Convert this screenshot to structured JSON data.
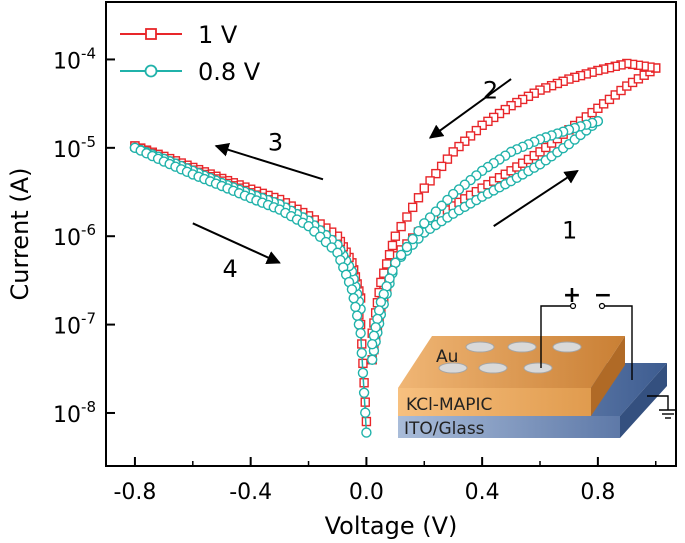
{
  "chart_data": {
    "type": "scatter",
    "xlabel": "Voltage (V)",
    "ylabel": "Current (A)",
    "xlim": [
      -0.9,
      1.07
    ],
    "ylim_log10": [
      -8.6,
      -3.35
    ],
    "yscale": "log",
    "xticks": [
      -0.8,
      -0.4,
      0.0,
      0.4,
      0.8
    ],
    "xtick_labels": [
      "-0.8",
      "-0.4",
      "0.0",
      "0.4",
      "0.8"
    ],
    "yticks": [
      1e-08,
      1e-07,
      1e-06,
      1e-05,
      0.0001
    ],
    "ytick_labels": [
      {
        "base": "10",
        "exp": "-8"
      },
      {
        "base": "10",
        "exp": "-7"
      },
      {
        "base": "10",
        "exp": "-6"
      },
      {
        "base": "10",
        "exp": "-5"
      },
      {
        "base": "10",
        "exp": "-4"
      }
    ],
    "legend_position": "top-left",
    "series": [
      {
        "name": "1 V",
        "color": "#e8262a",
        "marker": "square",
        "branches": [
          {
            "label": "forward_0_to_1",
            "x": [
              0.02,
              0.05,
              0.1,
              0.2,
              0.3,
              0.4,
              0.5,
              0.6,
              0.7,
              0.8,
              0.9,
              1.0
            ],
            "y": [
              4e-08,
              1.5e-07,
              6e-07,
              1.3e-06,
              2.2e-06,
              3.5e-06,
              5.5e-06,
              9e-06,
              1.6e-05,
              2.8e-05,
              5e-05,
              8e-05
            ]
          },
          {
            "label": "reverse_1_to_0",
            "x": [
              1.0,
              0.9,
              0.8,
              0.7,
              0.6,
              0.5,
              0.4,
              0.3,
              0.2,
              0.1,
              0.05,
              0.02
            ],
            "y": [
              8e-05,
              9e-05,
              7.5e-05,
              6e-05,
              4.5e-05,
              3e-05,
              1.8e-05,
              9e-06,
              3.5e-06,
              1e-06,
              3e-07,
              8e-08
            ]
          },
          {
            "label": "reverse_0_to_-0.8",
            "x": [
              -0.02,
              -0.05,
              -0.1,
              -0.2,
              -0.3,
              -0.4,
              -0.5,
              -0.6,
              -0.7,
              -0.8
            ],
            "y": [
              2e-07,
              5e-07,
              1e-06,
              1.7e-06,
              2.6e-06,
              3.4e-06,
              4.5e-06,
              6e-06,
              8e-06,
              1.05e-05
            ]
          },
          {
            "label": "forward_-0.8_to_0",
            "x": [
              -0.8,
              -0.7,
              -0.6,
              -0.5,
              -0.4,
              -0.3,
              -0.2,
              -0.1,
              -0.05,
              -0.02,
              0.0
            ],
            "y": [
              1.05e-05,
              7.5e-06,
              5.6e-06,
              4.2e-06,
              3.1e-06,
              2.3e-06,
              1.5e-06,
              8e-07,
              3.5e-07,
              1e-07,
              8e-09
            ]
          }
        ]
      },
      {
        "name": "0.8 V",
        "color": "#20b2aa",
        "marker": "circle",
        "branches": [
          {
            "label": "forward_0_to_0.8",
            "x": [
              0.02,
              0.05,
              0.1,
              0.2,
              0.3,
              0.4,
              0.5,
              0.6,
              0.7,
              0.8
            ],
            "y": [
              4e-08,
              1.3e-07,
              5e-07,
              1.1e-06,
              1.8e-06,
              2.8e-06,
              4.2e-06,
              6.5e-06,
              1.1e-05,
              2e-05
            ]
          },
          {
            "label": "reverse_0.8_to_0",
            "x": [
              0.8,
              0.7,
              0.6,
              0.5,
              0.4,
              0.3,
              0.2,
              0.1,
              0.05,
              0.02
            ],
            "y": [
              2e-05,
              1.6e-05,
              1.25e-05,
              9e-06,
              5.5e-06,
              3e-06,
              1.4e-06,
              5e-07,
              1.8e-07,
              6e-08
            ]
          },
          {
            "label": "reverse_0_to_-0.8",
            "x": [
              -0.02,
              -0.05,
              -0.1,
              -0.2,
              -0.3,
              -0.4,
              -0.5,
              -0.6,
              -0.7,
              -0.8
            ],
            "y": [
              1.5e-07,
              4e-07,
              8e-07,
              1.5e-06,
              2.3e-06,
              3e-06,
              4e-06,
              5.5e-06,
              7.5e-06,
              1e-05
            ]
          },
          {
            "label": "forward_-0.8_to_0",
            "x": [
              -0.8,
              -0.7,
              -0.6,
              -0.5,
              -0.4,
              -0.3,
              -0.2,
              -0.1,
              -0.05,
              -0.02,
              0.0
            ],
            "y": [
              1e-05,
              7e-06,
              5e-06,
              3.7e-06,
              2.7e-06,
              2e-06,
              1.3e-06,
              6.5e-07,
              2.5e-07,
              8e-08,
              6e-09
            ]
          }
        ]
      }
    ],
    "annotations": [
      {
        "label": "1",
        "arrow_from_xy": [
          0.44,
          1.3e-06
        ],
        "arrow_to_xy": [
          0.73,
          5.5e-06
        ]
      },
      {
        "label": "2",
        "arrow_from_xy": [
          0.5,
          6e-05
        ],
        "arrow_to_xy": [
          0.22,
          1.3e-05
        ]
      },
      {
        "label": "3",
        "arrow_from_xy": [
          -0.15,
          4.4e-06
        ],
        "arrow_to_xy": [
          -0.52,
          1.05e-05
        ]
      },
      {
        "label": "4",
        "arrow_from_xy": [
          -0.6,
          1.4e-06
        ],
        "arrow_to_xy": [
          -0.3,
          5e-07
        ]
      }
    ],
    "inset": {
      "layers": [
        "Au",
        "KCl-MAPIC",
        "ITO/Glass"
      ],
      "polarity": [
        "+",
        "−"
      ]
    }
  }
}
